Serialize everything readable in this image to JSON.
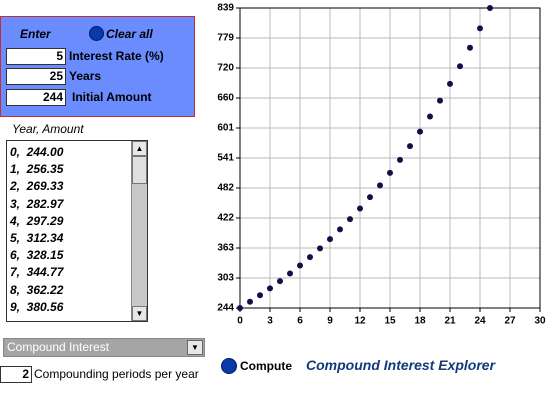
{
  "form": {
    "enter_button": "Enter",
    "clear_button": "Clear all",
    "fields": [
      {
        "value": 5,
        "label": "Interest Rate (%)"
      },
      {
        "value": 25,
        "label": "Years"
      },
      {
        "value": 244,
        "label": "Initial Amount"
      }
    ]
  },
  "results": {
    "header": "Year, Amount",
    "items": [
      "0,  244.00",
      "1,  256.35",
      "2,  269.33",
      "3,  282.97",
      "4,  297.29",
      "5,  312.34",
      "6,  328.15",
      "7,  344.77",
      "8,  362.22",
      "9,  380.56"
    ]
  },
  "mode_select": "Compound Interest",
  "periods": {
    "value": 2,
    "label": "Compounding periods per year"
  },
  "compute_button": "Compute",
  "app_title": "Compound Interest Explorer",
  "chart_data": {
    "type": "scatter",
    "x": [
      0,
      1,
      2,
      3,
      4,
      5,
      6,
      7,
      8,
      9,
      10,
      11,
      12,
      13,
      14,
      15,
      16,
      17,
      18,
      19,
      20,
      21,
      22,
      23,
      24,
      25
    ],
    "values": [
      244.0,
      256.35,
      269.33,
      282.97,
      297.29,
      312.34,
      328.15,
      344.77,
      362.22,
      380.56,
      399.82,
      420.06,
      441.33,
      463.67,
      487.14,
      511.81,
      537.72,
      564.94,
      593.54,
      623.59,
      655.16,
      688.32,
      723.17,
      759.78,
      798.24,
      838.65
    ],
    "color": "#1c0a48",
    "xlim": [
      0,
      30
    ],
    "xticks": [
      0,
      3,
      6,
      9,
      12,
      15,
      18,
      21,
      24,
      27,
      30
    ],
    "ylim": [
      244,
      838.65
    ],
    "yticks": [
      244,
      {
        "value": 303.465,
        "label": "303"
      },
      {
        "value": 362.93,
        "label": "363"
      },
      {
        "value": 422.395,
        "label": "422"
      },
      {
        "value": 481.86,
        "label": "482"
      },
      {
        "value": 541.325,
        "label": "541"
      },
      {
        "value": 600.79,
        "label": "601"
      },
      {
        "value": 660.255,
        "label": "660"
      },
      {
        "value": 719.72,
        "label": "720"
      },
      {
        "value": 779.185,
        "label": "779"
      },
      {
        "value": 838.65,
        "label": "839"
      }
    ],
    "grid": true
  }
}
